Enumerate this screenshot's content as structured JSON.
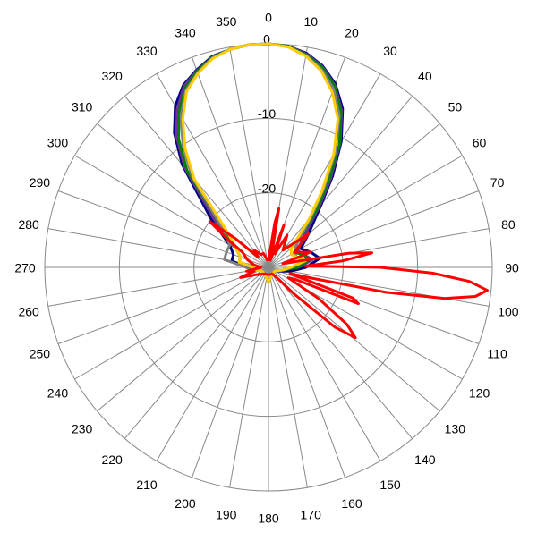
{
  "chart_data": {
    "type": "polar",
    "rlim": [
      -30,
      0
    ],
    "rticks": [
      -20,
      -10,
      0
    ],
    "thetaticks": [
      0,
      10,
      20,
      30,
      40,
      50,
      60,
      70,
      80,
      90,
      100,
      110,
      120,
      130,
      140,
      150,
      160,
      170,
      180,
      190,
      200,
      210,
      220,
      230,
      240,
      250,
      260,
      270,
      280,
      290,
      300,
      310,
      320,
      330,
      340,
      350
    ],
    "theta": [
      0,
      5,
      10,
      15,
      20,
      25,
      30,
      35,
      40,
      50,
      60,
      70,
      80,
      90,
      100,
      120,
      150,
      180,
      210,
      240,
      260,
      270,
      280,
      290,
      300,
      310,
      320,
      325,
      330,
      335,
      340,
      345,
      350,
      355
    ],
    "series": [
      {
        "color": "#000080",
        "values": [
          0,
          -0.2,
          -0.8,
          -2,
          -3.8,
          -6.5,
          -10.5,
          -15,
          -19,
          -23,
          -25,
          -24,
          -23,
          -25,
          -27,
          -29,
          -29,
          -28,
          -29,
          -29,
          -28,
          -27,
          -25,
          -25,
          -24,
          -20,
          -12,
          -8,
          -5,
          -3,
          -1.8,
          -0.7,
          -0.3,
          0
        ]
      },
      {
        "color": "#7030a0",
        "values": [
          0,
          -0.2,
          -0.9,
          -2.1,
          -4,
          -6.8,
          -10.8,
          -15.5,
          -19.5,
          -24,
          -25.5,
          -25,
          -24,
          -26,
          -28,
          -29,
          -29,
          -28,
          -29,
          -29,
          -28,
          -28,
          -26,
          -26,
          -25,
          -21,
          -12.5,
          -8.5,
          -5.5,
          -3.2,
          -1.9,
          -0.8,
          -0.3,
          0
        ]
      },
      {
        "color": "#008000",
        "values": [
          0,
          -0.2,
          -1,
          -2.2,
          -4.1,
          -7,
          -11,
          -16,
          -20,
          -25,
          -26,
          -25,
          -24.5,
          -26,
          -28,
          -29,
          -29,
          -28,
          -29,
          -29,
          -28,
          -28,
          -26,
          -26,
          -25,
          -22,
          -13,
          -9,
          -6,
          -3.5,
          -2,
          -0.8,
          -0.3,
          0
        ]
      },
      {
        "color": "#808080",
        "values": [
          0,
          -0.3,
          -1.1,
          -2.5,
          -4.5,
          -7.5,
          -12,
          -17,
          -21,
          -25,
          -26,
          -26,
          -25,
          -27,
          -28,
          -29,
          -29,
          -28,
          -29,
          -29,
          -28,
          -27,
          -24,
          -24,
          -24,
          -22,
          -14,
          -10,
          -6.5,
          -3.8,
          -2.2,
          -0.9,
          -0.3,
          0
        ]
      },
      {
        "color": "#ffcc00",
        "values": [
          0,
          -0.3,
          -1.2,
          -2.7,
          -5,
          -8,
          -12.5,
          -17.5,
          -21.5,
          -26,
          -26.5,
          -26,
          -25,
          -27,
          -28,
          -29,
          -29,
          -28,
          -29,
          -29,
          -28,
          -28,
          -26,
          -26,
          -25,
          -23,
          -14.5,
          -10.5,
          -7,
          -4,
          -2.3,
          -1,
          -0.3,
          0
        ]
      },
      {
        "color": "#ff0000",
        "theta": [
          0,
          5,
          8,
          10,
          12,
          15,
          20,
          25,
          30,
          40,
          50,
          60,
          70,
          75,
          80,
          82,
          85,
          88,
          90,
          92,
          94,
          96,
          98,
          100,
          102,
          104,
          106,
          110,
          112,
          114,
          118,
          122,
          126,
          129,
          132,
          136,
          140,
          150,
          180,
          210,
          240,
          250,
          255,
          260,
          270,
          280,
          290,
          300,
          305,
          308,
          311,
          315,
          320,
          330,
          340,
          350
        ],
        "values": [
          -29,
          -28,
          -24,
          -22,
          -27,
          -29,
          -24,
          -28,
          -25,
          -27,
          -23,
          -26,
          -24,
          -28,
          -19,
          -16,
          -20,
          -25,
          -15,
          -8,
          -3,
          -0.5,
          -2,
          -6,
          -14,
          -24,
          -27,
          -18,
          -17,
          -26,
          -27,
          -22,
          -17,
          -15,
          -18,
          -25,
          -28,
          -29,
          -29,
          -29,
          -28,
          -26,
          -28,
          -27,
          -29,
          -28,
          -27,
          -26,
          -23,
          -20,
          -24,
          -28,
          -27,
          -28,
          -28,
          -29
        ]
      }
    ]
  }
}
